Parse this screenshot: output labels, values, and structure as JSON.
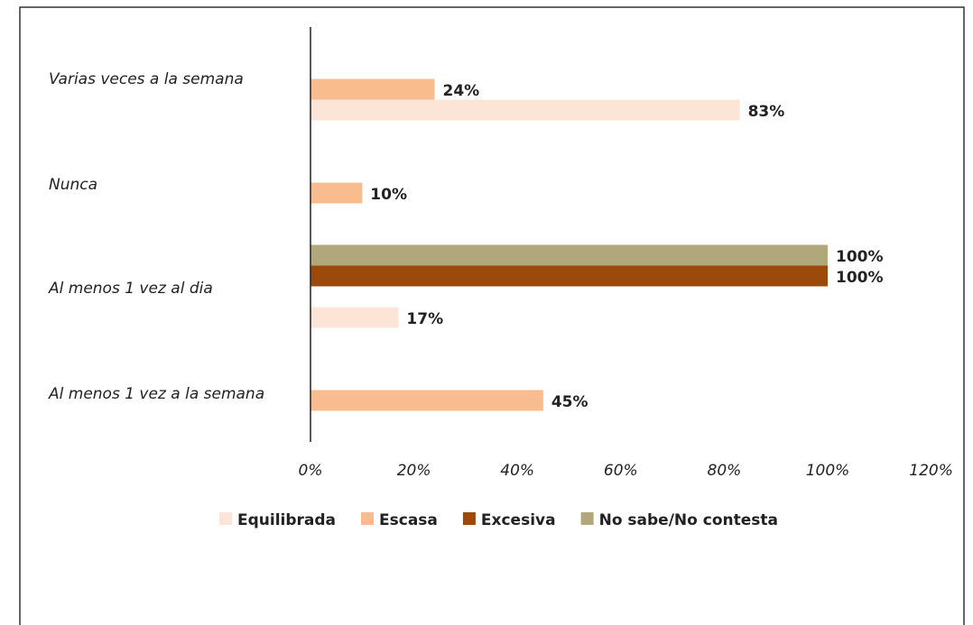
{
  "chart_data": {
    "type": "hbar",
    "categories": [
      "Varias veces a la semana",
      "Nunca",
      "Al menos 1 vez al dia",
      "Al menos 1 vez a la semana"
    ],
    "series": [
      {
        "name": "Equilibrada",
        "color": "#fce4d6",
        "values": [
          83,
          null,
          17,
          null
        ],
        "value_labels": [
          "83%",
          null,
          "17%",
          null
        ]
      },
      {
        "name": "Escasa",
        "color": "#f8bc8f",
        "values": [
          24,
          10,
          null,
          45
        ],
        "value_labels": [
          "24%",
          "10%",
          null,
          "45%"
        ]
      },
      {
        "name": "Excesiva",
        "color": "#9c4a0c",
        "values": [
          null,
          null,
          100,
          null
        ],
        "value_labels": [
          null,
          null,
          "100%",
          null
        ]
      },
      {
        "name": "No sabe/No contesta",
        "color": "#b0a77a",
        "values": [
          null,
          null,
          100,
          null
        ],
        "value_labels": [
          null,
          null,
          "100%",
          null
        ]
      }
    ],
    "xlim": [
      0,
      120
    ],
    "xticks": [
      {
        "value": 0,
        "label": "0%"
      },
      {
        "value": 20,
        "label": "20%"
      },
      {
        "value": 40,
        "label": "40%"
      },
      {
        "value": 60,
        "label": "60%"
      },
      {
        "value": 80,
        "label": "80%"
      },
      {
        "value": 100,
        "label": "100%"
      },
      {
        "value": 120,
        "label": "120%"
      }
    ],
    "legend": "bottom"
  }
}
